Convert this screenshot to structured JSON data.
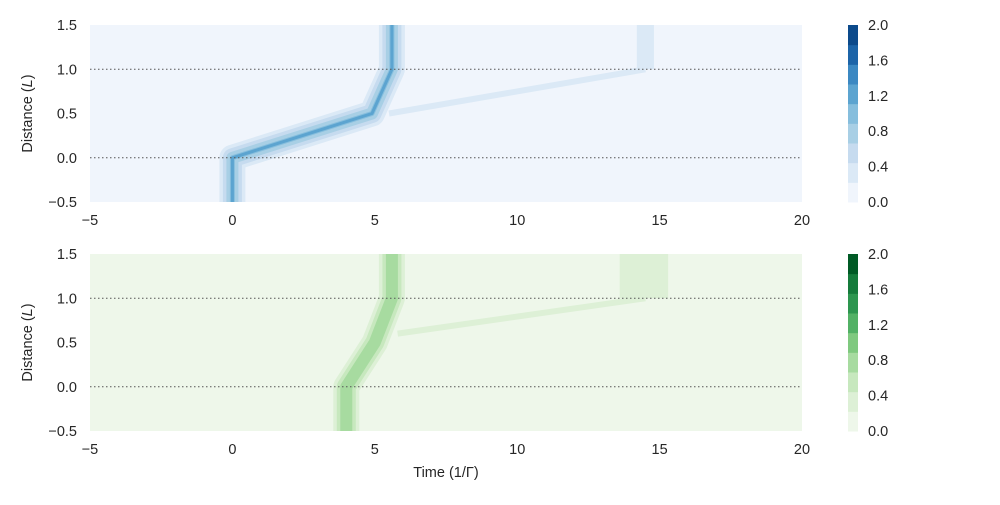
{
  "figure": {
    "xlabel": "Time (1/Γ)"
  },
  "chart_data": [
    {
      "type": "heatmap",
      "name": "blue-panel",
      "colormap": "Blues",
      "colors": [
        "#f0f5fc",
        "#dbe9f6",
        "#c6dbef",
        "#a8cfe5",
        "#86bedd",
        "#5ca4d0",
        "#3b88c2",
        "#1c64a8",
        "#0c4a8b"
      ],
      "ylabel": "Distance (L)",
      "xlim": [
        -5,
        20
      ],
      "ylim": [
        -0.5,
        1.5
      ],
      "xticks": [
        "−5",
        "0",
        "5",
        "10",
        "15",
        "20"
      ],
      "yticks": [
        "−0.5",
        "0.0",
        "0.5",
        "1.0",
        "1.5"
      ],
      "hlines": [
        0.0,
        1.0
      ],
      "colorbar": {
        "min": 0.0,
        "max": 2.0,
        "ticks": [
          "0.0",
          "0.4",
          "0.8",
          "1.2",
          "1.6",
          "2.0"
        ]
      },
      "features": [
        {
          "label": "main-wavepacket",
          "path": [
            [
              0.0,
              -0.5
            ],
            [
              0.0,
              0.0
            ],
            [
              4.9,
              0.5
            ],
            [
              5.6,
              1.0
            ],
            [
              5.6,
              1.5
            ]
          ],
          "peak": 1.2
        },
        {
          "label": "reflected-tail",
          "path": [
            [
              5.5,
              0.5
            ],
            [
              14.5,
              1.0
            ]
          ],
          "peak": 0.2
        },
        {
          "label": "transmitted-block",
          "x_range": [
            14.2,
            14.8
          ],
          "y_range": [
            1.0,
            1.5
          ],
          "peak": 0.2
        }
      ]
    },
    {
      "type": "heatmap",
      "name": "green-panel",
      "colormap": "Greens",
      "colors": [
        "#eef7ea",
        "#ddf0d6",
        "#c7e8be",
        "#a7dba0",
        "#7fc97f",
        "#52b165",
        "#2d964f",
        "#157b3b",
        "#005a25"
      ],
      "ylabel": "Distance (L)",
      "xlim": [
        -5,
        20
      ],
      "ylim": [
        -0.5,
        1.5
      ],
      "xticks": [
        "−5",
        "0",
        "5",
        "10",
        "15",
        "20"
      ],
      "yticks": [
        "−0.5",
        "0.0",
        "0.5",
        "1.0",
        "1.5"
      ],
      "hlines": [
        0.0,
        1.0
      ],
      "colorbar": {
        "min": 0.0,
        "max": 2.0,
        "ticks": [
          "0.0",
          "0.4",
          "0.8",
          "1.2",
          "1.6",
          "2.0"
        ]
      },
      "features": [
        {
          "label": "main-wavepacket",
          "path": [
            [
              4.0,
              -0.5
            ],
            [
              4.0,
              0.0
            ],
            [
              5.0,
              0.5
            ],
            [
              5.6,
              1.0
            ],
            [
              5.6,
              1.5
            ]
          ],
          "peak": 0.8
        },
        {
          "label": "reflected-tail",
          "path": [
            [
              5.8,
              0.6
            ],
            [
              14.5,
              1.0
            ]
          ],
          "peak": 0.2
        },
        {
          "label": "transmitted-block",
          "x_range": [
            13.6,
            15.3
          ],
          "y_range": [
            1.0,
            1.5
          ],
          "peak": 0.2
        }
      ]
    }
  ]
}
